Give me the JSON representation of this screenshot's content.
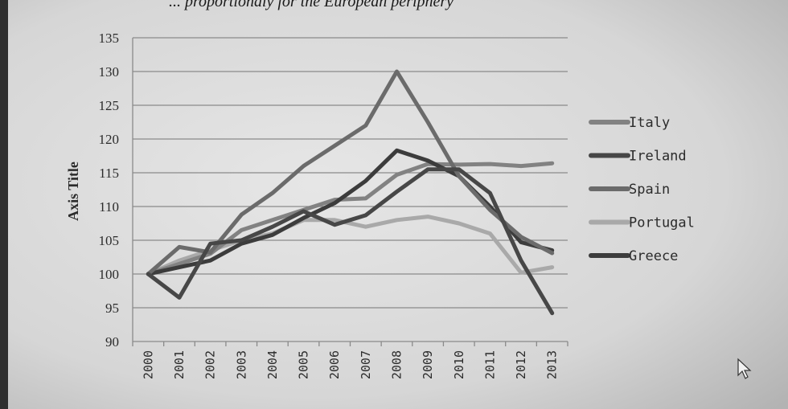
{
  "chart_data": {
    "type": "line",
    "top_caption": "... proportionaly for the European periphery",
    "x": [
      "2000",
      "2001",
      "2002",
      "2003",
      "2004",
      "2005",
      "2006",
      "2007",
      "2008",
      "2009",
      "2010",
      "2011",
      "2012",
      "2013"
    ],
    "ylabel": "Axis Title",
    "ylim": [
      90,
      135
    ],
    "yticks": [
      "90",
      "95",
      "100",
      "105",
      "110",
      "115",
      "120",
      "125",
      "130",
      "135"
    ],
    "grid": true,
    "legend_position": "right",
    "series": [
      {
        "name": "Italy",
        "color": "#828282",
        "values": [
          100,
          101.5,
          103,
          106.5,
          108,
          109.5,
          111,
          111.2,
          114.7,
          116.3,
          116.2,
          116.3,
          116,
          116.4
        ]
      },
      {
        "name": "Ireland",
        "color": "#474747",
        "values": [
          100,
          96.5,
          104.5,
          105,
          107,
          109.3,
          107.3,
          108.7,
          112.2,
          115.5,
          115.5,
          112,
          102,
          94.2
        ]
      },
      {
        "name": "Spain",
        "color": "#6b6b6b",
        "values": [
          100,
          104,
          103.2,
          108.8,
          112,
          116,
          119,
          122,
          130,
          122.5,
          114.5,
          109.5,
          105.5,
          103.1
        ]
      },
      {
        "name": "Portugal",
        "color": "#a9a9a9",
        "values": [
          100,
          102,
          103.5,
          105,
          106,
          108,
          108,
          107,
          108,
          108.5,
          107.5,
          106,
          100.2,
          101
        ]
      },
      {
        "name": "Greece",
        "color": "#3c3c3c",
        "values": [
          100,
          101,
          102,
          104.5,
          105.8,
          108.3,
          110.5,
          113.8,
          118.3,
          116.8,
          114.5,
          110,
          104.7,
          103.5
        ]
      }
    ]
  }
}
